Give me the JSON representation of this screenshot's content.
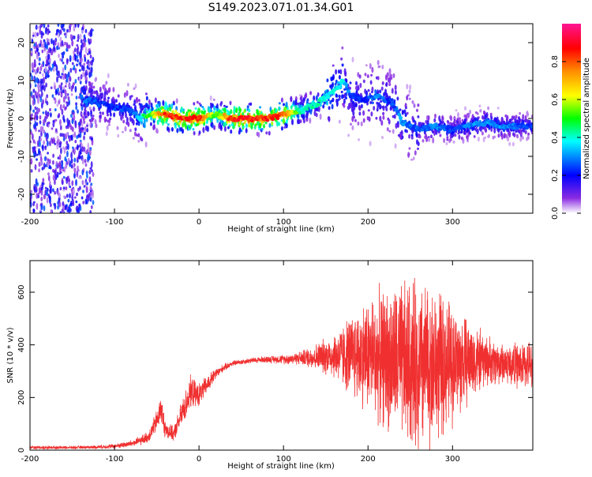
{
  "title": "S149.2023.071.01.34.G01",
  "chart_data": [
    {
      "type": "heatmap",
      "xlabel": "Height of straight line (km)",
      "ylabel": "Frequency (Hz)",
      "xlim": [
        -200,
        395
      ],
      "ylim": [
        -25,
        25
      ],
      "xticks": [
        -200,
        -100,
        0,
        100,
        200,
        300
      ],
      "yticks": [
        -20,
        -10,
        0,
        10,
        20
      ],
      "colorbar": {
        "label": "Normalized spectral amplitude",
        "range": [
          0,
          1
        ],
        "ticks": [
          0.0,
          0.2,
          0.4,
          0.6,
          0.8
        ],
        "colormap": [
          "#ffffff",
          "#8a2be2",
          "#0000ff",
          "#00ffff",
          "#00ff00",
          "#ffff00",
          "#ff8c00",
          "#ff0000",
          "#ff1493"
        ]
      },
      "ridge": {
        "x": [
          -135,
          -120,
          -100,
          -80,
          -70,
          -60,
          -40,
          -20,
          0,
          20,
          40,
          60,
          80,
          100,
          120,
          140,
          160,
          170,
          180,
          190,
          200,
          210,
          220,
          230,
          240,
          260,
          280,
          300,
          320,
          340,
          360,
          380,
          395
        ],
        "freq": [
          5,
          4,
          3,
          2,
          0,
          1,
          1,
          0,
          0,
          1,
          0,
          0,
          0,
          1,
          2,
          4,
          7,
          10,
          6,
          5,
          5,
          6,
          5,
          4,
          -1,
          -3,
          -2,
          -3,
          -2,
          -1,
          -2,
          -2,
          -2
        ],
        "amplitude": [
          0.35,
          0.3,
          0.3,
          0.3,
          0.4,
          0.55,
          0.9,
          0.9,
          0.95,
          0.55,
          0.95,
          0.95,
          0.9,
          0.9,
          0.45,
          0.45,
          0.4,
          0.4,
          0.3,
          0.3,
          0.3,
          0.35,
          0.3,
          0.3,
          0.35,
          0.3,
          0.35,
          0.3,
          0.35,
          0.35,
          0.35,
          0.3,
          0.3
        ]
      }
    },
    {
      "type": "line",
      "xlabel": "Height of straight line (km)",
      "ylabel": "SNR (10 * v/v)",
      "xlim": [
        -200,
        395
      ],
      "ylim": [
        0,
        720
      ],
      "xticks": [
        -200,
        -100,
        0,
        100,
        200,
        300
      ],
      "yticks": [
        0,
        200,
        400,
        600
      ],
      "color": "#f03030",
      "series": [
        {
          "x": [
            -200,
            -150,
            -120,
            -100,
            -80,
            -70,
            -60,
            -50,
            -45,
            -40,
            -30,
            -20,
            -10,
            0,
            10,
            20,
            30,
            40,
            50,
            60,
            80,
            100,
            120,
            140,
            160,
            180,
            200,
            220,
            240,
            260,
            280,
            300,
            320,
            340,
            360,
            380,
            395
          ],
          "mean": [
            10,
            10,
            12,
            15,
            25,
            35,
            50,
            110,
            160,
            80,
            60,
            140,
            220,
            210,
            250,
            290,
            315,
            330,
            335,
            340,
            345,
            345,
            350,
            355,
            360,
            360,
            365,
            350,
            330,
            320,
            320,
            330,
            340,
            340,
            330,
            320,
            330
          ],
          "spread": [
            8,
            6,
            8,
            10,
            15,
            20,
            25,
            50,
            60,
            40,
            30,
            60,
            70,
            50,
            40,
            25,
            15,
            12,
            12,
            12,
            15,
            20,
            30,
            60,
            100,
            180,
            250,
            300,
            350,
            380,
            330,
            260,
            180,
            110,
            90,
            100,
            100
          ]
        }
      ]
    }
  ]
}
